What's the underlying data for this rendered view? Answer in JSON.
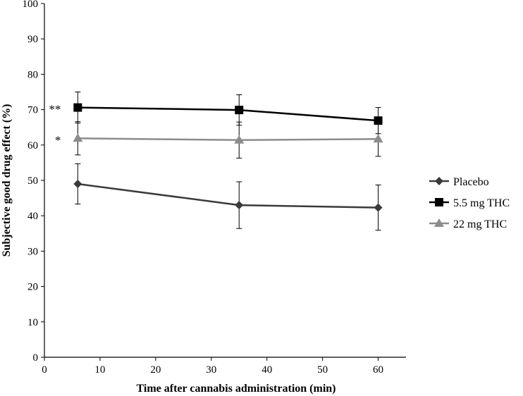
{
  "chart_data": {
    "type": "line",
    "xlabel": "Time after cannabis administration (min)",
    "ylabel": "Subjective good drug effect (%)",
    "xlim": [
      0,
      65
    ],
    "ylim": [
      0,
      100
    ],
    "xticks": [
      0,
      10,
      20,
      30,
      40,
      50,
      60
    ],
    "yticks": [
      0,
      10,
      20,
      30,
      40,
      50,
      60,
      70,
      80,
      90,
      100
    ],
    "grid": false,
    "legend_position": "right",
    "series": [
      {
        "name": "Placebo",
        "marker": "diamond",
        "color": "#3a3a3a",
        "x": [
          6,
          35,
          60
        ],
        "y": [
          49,
          43,
          42.3
        ],
        "error": [
          5.7,
          6.6,
          6.4
        ]
      },
      {
        "name": "5.5 mg THC",
        "marker": "square",
        "color": "#000000",
        "x": [
          6,
          35,
          60
        ],
        "y": [
          70.6,
          69.9,
          66.9
        ],
        "error": [
          4.4,
          4.3,
          3.7
        ]
      },
      {
        "name": "22 mg THC",
        "marker": "triangle",
        "color": "#8c8c8c",
        "x": [
          6,
          35,
          60
        ],
        "y": [
          61.9,
          61.4,
          61.7
        ],
        "error": [
          4.7,
          5.1,
          4.9
        ]
      }
    ],
    "annotations": [
      {
        "text": "**",
        "x": 6,
        "y": 70.6
      },
      {
        "text": "*",
        "x": 6,
        "y": 61.9
      }
    ]
  }
}
